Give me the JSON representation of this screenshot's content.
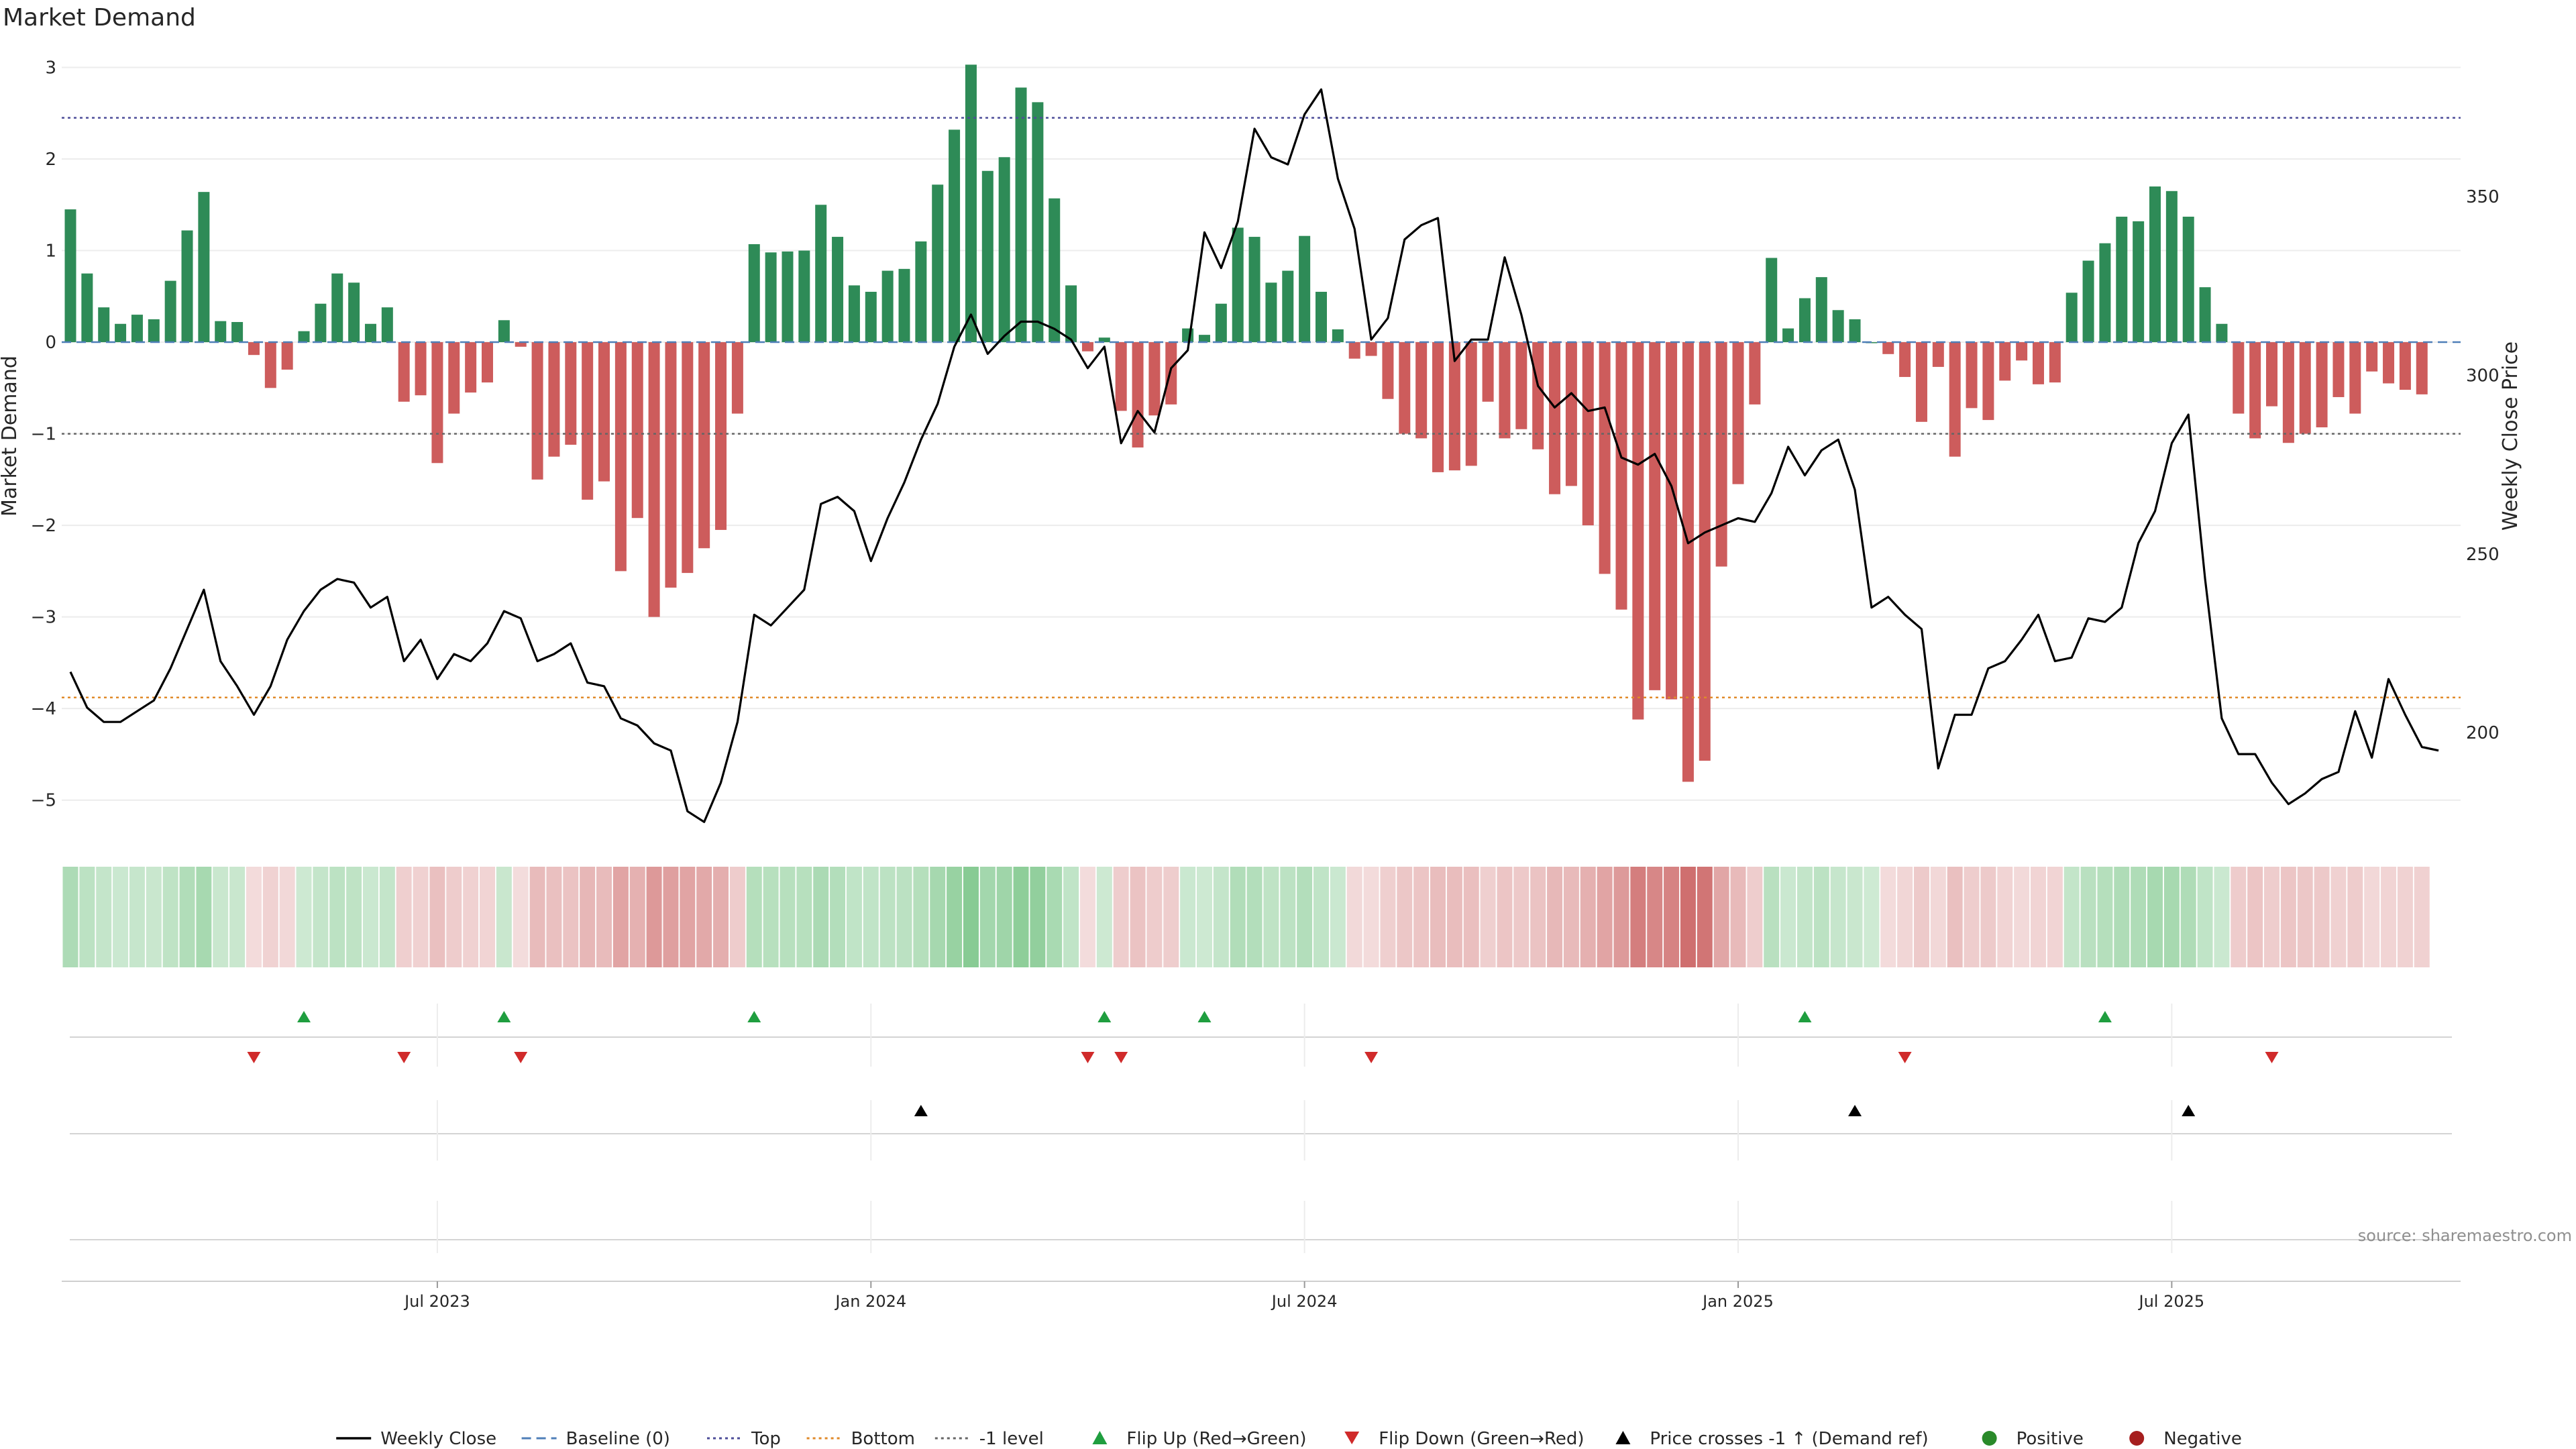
{
  "title": "Market Demand",
  "source": "source: sharemaestro.com",
  "chart_data": {
    "type": "bar+line",
    "title": "Market Demand",
    "ylabel_left": "Market Demand",
    "ylabel_right": "Weekly Close Price",
    "ylim_left": [
      -5.2,
      3.15
    ],
    "yticks_left": [
      3,
      2,
      1,
      0,
      -1,
      -2,
      -3,
      -4,
      -5
    ],
    "ylim_right": [
      176,
      390
    ],
    "yticks_right": [
      350,
      300,
      250,
      200
    ],
    "x_start_index": 0,
    "x_tick_labels": [
      {
        "index": 22,
        "label": "Jul 2023"
      },
      {
        "index": 48,
        "label": "Jan 2024"
      },
      {
        "index": 74,
        "label": "Jul 2024"
      },
      {
        "index": 100,
        "label": "Jan 2025"
      },
      {
        "index": 126,
        "label": "Jul 2025"
      }
    ],
    "reference_lines": {
      "top": 2.45,
      "bottom": -3.88,
      "minus_one": -1.0,
      "baseline": 0
    },
    "demand": [
      1.45,
      0.75,
      0.38,
      0.2,
      0.3,
      0.25,
      0.67,
      1.22,
      1.64,
      0.23,
      0.22,
      -0.14,
      -0.5,
      -0.3,
      0.12,
      0.42,
      0.75,
      0.65,
      0.2,
      0.38,
      -0.65,
      -0.58,
      -1.32,
      -0.78,
      -0.55,
      -0.44,
      0.24,
      -0.05,
      -1.5,
      -1.25,
      -1.12,
      -1.72,
      -1.52,
      -2.5,
      -1.92,
      -3.0,
      -2.68,
      -2.52,
      -2.25,
      -2.05,
      -0.78,
      1.07,
      0.98,
      0.99,
      1.0,
      1.5,
      1.15,
      0.62,
      0.55,
      0.78,
      0.8,
      1.1,
      1.72,
      2.32,
      3.03,
      1.87,
      2.02,
      2.78,
      2.62,
      1.57,
      0.62,
      -0.1,
      0.05,
      -0.75,
      -1.15,
      -0.8,
      -0.68,
      0.15,
      0.08,
      0.42,
      1.25,
      1.15,
      0.65,
      0.78,
      1.16,
      0.55,
      0.14,
      -0.18,
      -0.15,
      -0.62,
      -1.0,
      -1.05,
      -1.42,
      -1.4,
      -1.35,
      -0.65,
      -1.05,
      -0.95,
      -1.17,
      -1.66,
      -1.57,
      -2.0,
      -2.53,
      -2.92,
      -4.12,
      -3.8,
      -3.9,
      -4.8,
      -4.57,
      -2.45,
      -1.55,
      -0.68,
      0.92,
      0.15,
      0.48,
      0.71,
      0.35,
      0.25,
      0.0,
      -0.13,
      -0.38,
      -0.87,
      -0.27,
      -1.25,
      -0.72,
      -0.85,
      -0.42,
      -0.2,
      -0.46,
      -0.44,
      0.54,
      0.89,
      1.08,
      1.37,
      1.32,
      1.7,
      1.65,
      1.37,
      0.6,
      0.2,
      -0.78,
      -1.05,
      -0.7,
      -1.1,
      -1.0,
      -0.93,
      -0.6,
      -0.78,
      -0.32,
      -0.45,
      -0.52,
      -0.57
    ],
    "weekly_close": [
      217,
      207,
      203,
      203,
      206,
      209,
      218,
      229,
      240,
      220,
      213,
      205,
      213,
      226,
      234,
      240,
      243,
      242,
      235,
      238,
      220,
      226,
      215,
      222,
      220,
      225,
      234,
      232,
      220,
      222,
      225,
      214,
      213,
      204,
      202,
      197,
      195,
      178,
      175,
      186,
      203,
      233,
      230,
      235,
      240,
      264,
      266,
      262,
      248,
      260,
      270,
      282,
      292,
      308,
      317,
      306,
      311,
      315,
      315,
      313,
      310,
      302,
      308,
      281,
      290,
      284,
      302,
      307,
      340,
      330,
      343,
      369,
      361,
      359,
      373,
      380,
      355,
      341,
      310,
      316,
      338,
      342,
      344,
      304,
      310,
      310,
      333,
      317,
      297,
      291,
      295,
      290,
      291,
      277,
      275,
      278,
      269,
      253,
      256,
      258,
      260,
      259,
      267,
      280,
      272,
      279,
      282,
      268,
      235,
      238,
      233,
      229,
      190,
      205,
      205,
      218,
      220,
      226,
      233,
      220,
      221,
      232,
      231,
      235,
      253,
      262,
      281,
      289,
      243,
      204,
      194,
      194,
      186,
      180,
      183,
      187,
      189,
      206,
      193,
      215,
      205,
      196,
      195
    ],
    "strip_labels": [
      "Flip Up (Red→Green)",
      "Flip Down (Green→Red)",
      "Price crosses -1 ↑ (Demand ref)"
    ],
    "flip_up_indices": [
      14,
      26,
      41,
      62,
      68,
      104,
      122
    ],
    "flip_down_indices": [
      11,
      20,
      27,
      61,
      63,
      78,
      110,
      132
    ],
    "price_cross_indices": [
      51,
      107,
      127
    ],
    "legend": [
      {
        "label": "Weekly Close",
        "kind": "line",
        "color": "#000000"
      },
      {
        "label": "Baseline (0)",
        "kind": "dash",
        "color": "#4f7fb8"
      },
      {
        "label": "Top",
        "kind": "dot",
        "color": "#4d4d99"
      },
      {
        "label": "Bottom",
        "kind": "dot",
        "color": "#e08a2a"
      },
      {
        "label": "-1 level",
        "kind": "dot",
        "color": "#666666"
      },
      {
        "label": "Flip Up (Red→Green)",
        "kind": "tri-up",
        "color": "#1f9e3f"
      },
      {
        "label": "Flip Down (Green→Red)",
        "kind": "tri-down",
        "color": "#d02a2a"
      },
      {
        "label": "Price crosses -1 ↑ (Demand ref)",
        "kind": "tri-up",
        "color": "#000000"
      },
      {
        "label": "Positive",
        "kind": "circle",
        "color": "#2a8a2a"
      },
      {
        "label": "Negative",
        "kind": "circle",
        "color": "#a61e1e"
      }
    ],
    "colors": {
      "positive": "#2e8b57",
      "negative": "#cd5c5c",
      "price": "#000000"
    }
  }
}
